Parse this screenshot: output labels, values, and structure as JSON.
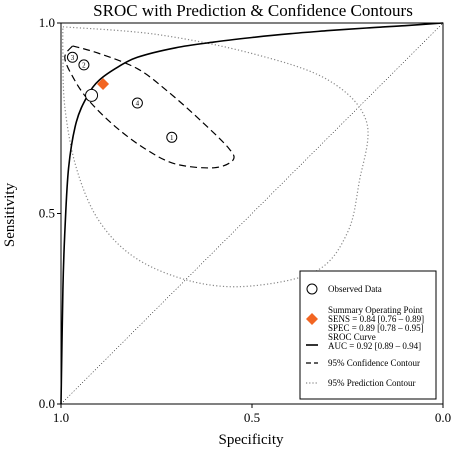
{
  "chart_data": {
    "type": "scatter",
    "title": "SROC with Prediction & Confidence Contours",
    "xlabel": "Specificity",
    "ylabel": "Sensitivity",
    "x_axis": "specificity, reversed (1.0 at left, 0.0 at right)",
    "xlim": [
      1.0,
      0.0
    ],
    "ylim": [
      0.0,
      1.0
    ],
    "x_ticks": [
      "1.0",
      "0.5",
      "0.0"
    ],
    "y_ticks": [
      "0.0",
      "0.5",
      "1.0"
    ],
    "observed": [
      {
        "label": "1",
        "specificity": 0.71,
        "sensitivity": 0.7
      },
      {
        "label": "2",
        "specificity": 0.94,
        "sensitivity": 0.89
      },
      {
        "label": "3",
        "specificity": 0.97,
        "sensitivity": 0.91
      },
      {
        "label": "4",
        "specificity": 0.8,
        "sensitivity": 0.79
      },
      {
        "label": "",
        "specificity": 0.92,
        "sensitivity": 0.81
      }
    ],
    "summary_point": {
      "specificity": 0.89,
      "sensitivity": 0.84,
      "color": "#f26522"
    },
    "sroc_curve": [
      [
        1.0,
        0.0
      ],
      [
        0.995,
        0.3
      ],
      [
        0.99,
        0.45
      ],
      [
        0.98,
        0.62
      ],
      [
        0.96,
        0.74
      ],
      [
        0.93,
        0.81
      ],
      [
        0.9,
        0.85
      ],
      [
        0.85,
        0.885
      ],
      [
        0.8,
        0.91
      ],
      [
        0.7,
        0.935
      ],
      [
        0.6,
        0.95
      ],
      [
        0.5,
        0.962
      ],
      [
        0.4,
        0.972
      ],
      [
        0.3,
        0.98
      ],
      [
        0.2,
        0.987
      ],
      [
        0.1,
        0.993
      ],
      [
        0.0,
        1.0
      ]
    ],
    "confidence_contour": [
      [
        0.97,
        0.94
      ],
      [
        0.9,
        0.92
      ],
      [
        0.8,
        0.88
      ],
      [
        0.72,
        0.82
      ],
      [
        0.63,
        0.74
      ],
      [
        0.56,
        0.67
      ],
      [
        0.55,
        0.64
      ],
      [
        0.6,
        0.62
      ],
      [
        0.7,
        0.63
      ],
      [
        0.78,
        0.67
      ],
      [
        0.86,
        0.73
      ],
      [
        0.93,
        0.8
      ],
      [
        0.97,
        0.86
      ],
      [
        0.99,
        0.91
      ],
      [
        0.97,
        0.94
      ]
    ],
    "prediction_contour": [
      [
        0.995,
        0.99
      ],
      [
        0.75,
        0.97
      ],
      [
        0.5,
        0.92
      ],
      [
        0.3,
        0.85
      ],
      [
        0.2,
        0.74
      ],
      [
        0.22,
        0.58
      ],
      [
        0.25,
        0.45
      ],
      [
        0.33,
        0.35
      ],
      [
        0.5,
        0.31
      ],
      [
        0.65,
        0.32
      ],
      [
        0.8,
        0.38
      ],
      [
        0.9,
        0.48
      ],
      [
        0.96,
        0.62
      ],
      [
        0.99,
        0.78
      ],
      [
        0.995,
        0.92
      ],
      [
        0.995,
        0.99
      ]
    ],
    "legend": {
      "position": "bottom-right",
      "items": [
        {
          "key": "observed",
          "label": "Observed Data"
        },
        {
          "key": "summary",
          "label": "Summary Operating Point",
          "sub": [
            "SENS = 0.84 [0.76 – 0.89]",
            "SPEC = 0.89 [0.78 – 0.95]"
          ]
        },
        {
          "key": "sroc",
          "label": "SROC Curve",
          "sub": [
            "AUC = 0.92 [0.89 – 0.94]"
          ]
        },
        {
          "key": "confidence",
          "label": "95% Confidence Contour"
        },
        {
          "key": "prediction",
          "label": "95% Prediction Contour"
        }
      ]
    }
  }
}
